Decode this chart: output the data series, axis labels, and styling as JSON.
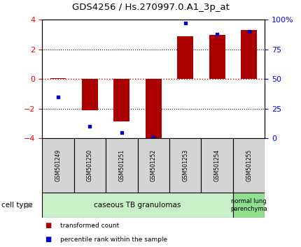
{
  "title": "GDS4256 / Hs.270997.0.A1_3p_at",
  "samples": [
    "GSM501249",
    "GSM501250",
    "GSM501251",
    "GSM501252",
    "GSM501253",
    "GSM501254",
    "GSM501255"
  ],
  "red_values": [
    0.05,
    -2.1,
    -2.85,
    -4.05,
    2.9,
    3.0,
    3.3
  ],
  "blue_values": [
    35,
    10,
    5,
    1,
    97,
    88,
    90
  ],
  "ylim": [
    -4,
    4
  ],
  "right_ylim": [
    0,
    100
  ],
  "right_yticks": [
    0,
    25,
    50,
    75,
    100
  ],
  "right_yticklabels": [
    "0",
    "25",
    "50",
    "75",
    "100%"
  ],
  "left_yticks": [
    -4,
    -2,
    0,
    2,
    4
  ],
  "bar_color": "#aa0000",
  "dot_color": "#0000cc",
  "zero_line_color": "#cc0000",
  "sample_box_color": "#d4d4d4",
  "cell_type_groups": [
    {
      "label": "caseous TB granulomas",
      "span": [
        0,
        5
      ],
      "color": "#c8f0c8"
    },
    {
      "label": "normal lung\nparenchyma",
      "span": [
        6,
        6
      ],
      "color": "#90e090"
    }
  ],
  "legend_items": [
    {
      "color": "#aa0000",
      "label": "transformed count"
    },
    {
      "color": "#0000cc",
      "label": "percentile rank within the sample"
    }
  ]
}
